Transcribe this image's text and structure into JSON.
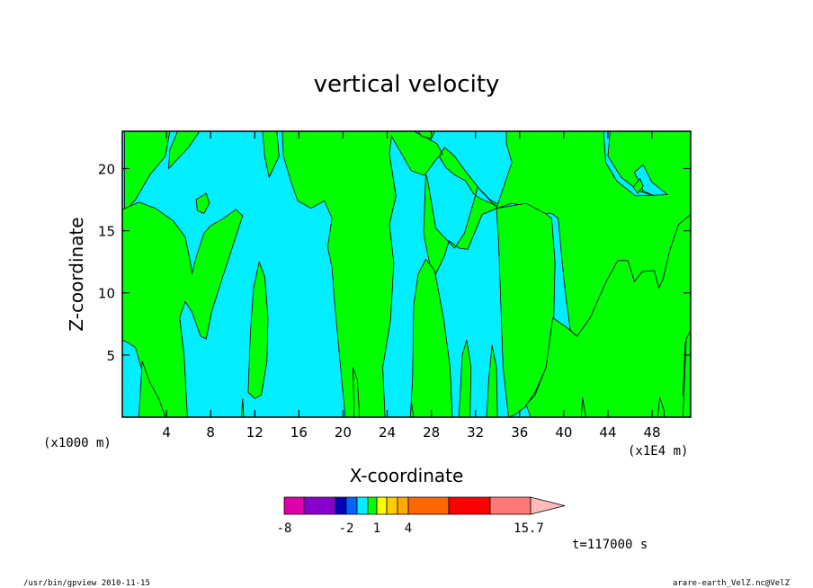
{
  "chart_data": {
    "type": "heatmap",
    "title": "vertical velocity",
    "xlabel": "X-coordinate",
    "ylabel": "Z-coordinate",
    "x_unit_label": "(x1E4 m)",
    "y_unit_label": "(x1000 m)",
    "xlim": [
      0,
      51.5
    ],
    "ylim": [
      0,
      23
    ],
    "x_ticks": [
      "4",
      "8",
      "12",
      "16",
      "20",
      "24",
      "28",
      "32",
      "36",
      "40",
      "44",
      "48"
    ],
    "y_ticks": [
      "5",
      "10",
      "15",
      "20"
    ],
    "time_label": "t=117000 s",
    "fill_colors": {
      "positive": "#00ff00",
      "negative": "#00eeff"
    },
    "colorbar": {
      "colors": [
        "#dd00aa",
        "#8800cc",
        "#0000bb",
        "#0066ff",
        "#00eeff",
        "#00ff00",
        "#ffff00",
        "#ffcc00",
        "#ffaa00",
        "#ff6600",
        "#ff0000",
        "#ff7777",
        "#ffbbbb"
      ],
      "labels": [
        "-8",
        "-2",
        "1",
        "4",
        "15.7"
      ]
    }
  },
  "footer": {
    "left": "/usr/bin/gpview   2010-11-15",
    "right": "arare-earth_VelZ.nc@VelZ"
  }
}
